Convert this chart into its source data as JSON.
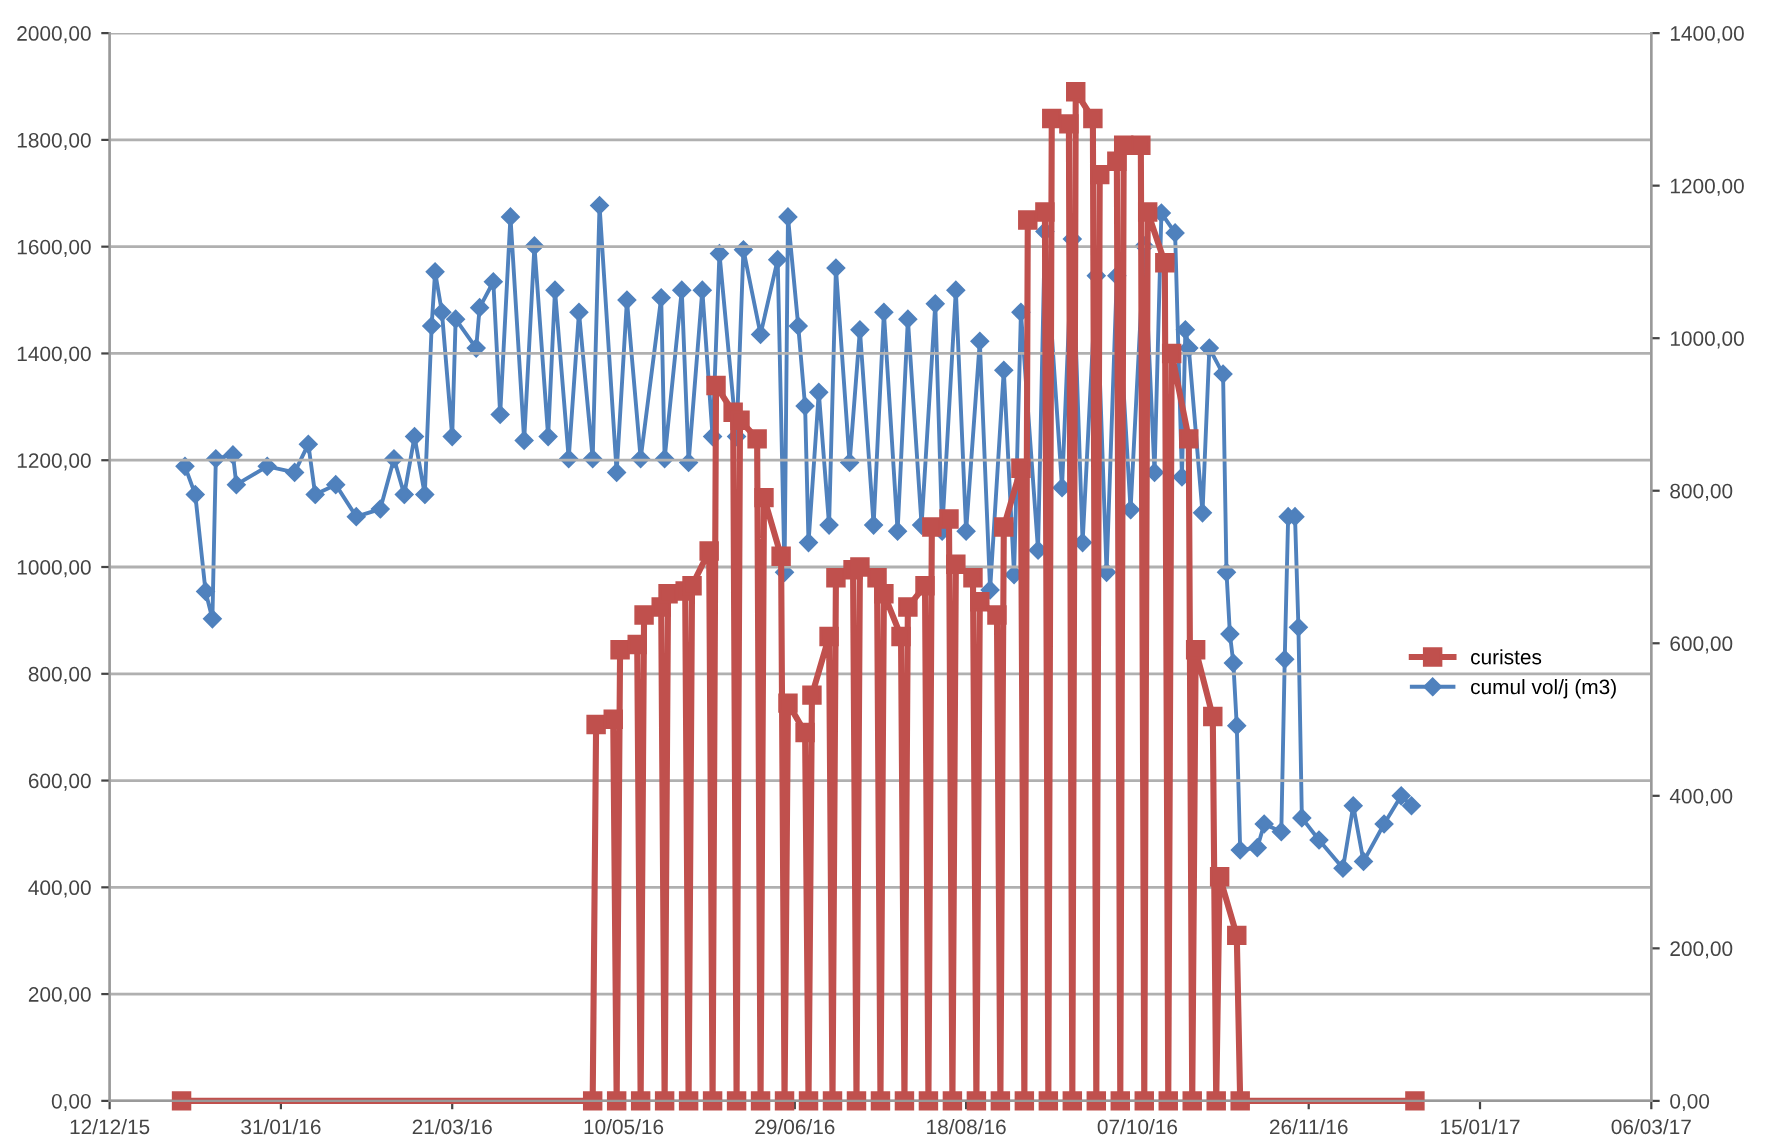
{
  "chart_data": {
    "type": "line",
    "grid": "y",
    "legend": "right",
    "xlim": [
      "2015-12-12",
      "2017-03-06"
    ],
    "xticks": [
      {
        "value": "2015-12-12",
        "label": "12/12/15"
      },
      {
        "value": "2016-01-31",
        "label": "31/01/16"
      },
      {
        "value": "2016-03-21",
        "label": "21/03/16"
      },
      {
        "value": "2016-05-10",
        "label": "10/05/16"
      },
      {
        "value": "2016-06-29",
        "label": "29/06/16"
      },
      {
        "value": "2016-08-18",
        "label": "18/08/16"
      },
      {
        "value": "2016-10-07",
        "label": "07/10/16"
      },
      {
        "value": "2016-11-26",
        "label": "26/11/16"
      },
      {
        "value": "2017-01-15",
        "label": "15/01/17"
      },
      {
        "value": "2017-03-06",
        "label": "06/03/17"
      }
    ],
    "ylim": [
      0,
      2000
    ],
    "yticks": [
      {
        "value": 0,
        "label": "0,00"
      },
      {
        "value": 200,
        "label": "200,00"
      },
      {
        "value": 400,
        "label": "400,00"
      },
      {
        "value": 600,
        "label": "600,00"
      },
      {
        "value": 800,
        "label": "800,00"
      },
      {
        "value": 1000,
        "label": "1000,00"
      },
      {
        "value": 1200,
        "label": "1200,00"
      },
      {
        "value": 1400,
        "label": "1400,00"
      },
      {
        "value": 1600,
        "label": "1600,00"
      },
      {
        "value": 1800,
        "label": "1800,00"
      },
      {
        "value": 2000,
        "label": "2000,00"
      }
    ],
    "y2lim": [
      0,
      1400
    ],
    "y2ticks": [
      {
        "value": 0,
        "label": "0,00"
      },
      {
        "value": 200,
        "label": "200,00"
      },
      {
        "value": 400,
        "label": "400,00"
      },
      {
        "value": 600,
        "label": "600,00"
      },
      {
        "value": 800,
        "label": "800,00"
      },
      {
        "value": 1000,
        "label": "1000,00"
      },
      {
        "value": 1200,
        "label": "1200,00"
      },
      {
        "value": 1400,
        "label": "1400,00"
      }
    ],
    "series": [
      {
        "name": "curistes",
        "color": "#c0504d",
        "marker": "square",
        "x": [
          "2016-01-02",
          "2016-05-01",
          "2016-05-02",
          "2016-05-07",
          "2016-05-08",
          "2016-05-09",
          "2016-05-14",
          "2016-05-15",
          "2016-05-16",
          "2016-05-21",
          "2016-05-22",
          "2016-05-23",
          "2016-05-28",
          "2016-05-29",
          "2016-05-30",
          "2016-06-04",
          "2016-06-05",
          "2016-06-06",
          "2016-06-11",
          "2016-06-12",
          "2016-06-13",
          "2016-06-18",
          "2016-06-19",
          "2016-06-20",
          "2016-06-25",
          "2016-06-26",
          "2016-06-27",
          "2016-07-02",
          "2016-07-03",
          "2016-07-04",
          "2016-07-09",
          "2016-07-10",
          "2016-07-11",
          "2016-07-16",
          "2016-07-17",
          "2016-07-18",
          "2016-07-23",
          "2016-07-24",
          "2016-07-25",
          "2016-07-30",
          "2016-07-31",
          "2016-08-01",
          "2016-08-06",
          "2016-08-07",
          "2016-08-08",
          "2016-08-13",
          "2016-08-14",
          "2016-08-15",
          "2016-08-20",
          "2016-08-21",
          "2016-08-22",
          "2016-08-27",
          "2016-08-28",
          "2016-08-29",
          "2016-09-03",
          "2016-09-04",
          "2016-09-05",
          "2016-09-10",
          "2016-09-11",
          "2016-09-12",
          "2016-09-17",
          "2016-09-18",
          "2016-09-19",
          "2016-09-24",
          "2016-09-25",
          "2016-09-26",
          "2016-10-01",
          "2016-10-02",
          "2016-10-03",
          "2016-10-08",
          "2016-10-09",
          "2016-10-10",
          "2016-10-15",
          "2016-10-16",
          "2016-10-17",
          "2016-10-22",
          "2016-10-23",
          "2016-10-24",
          "2016-10-29",
          "2016-10-30",
          "2016-10-31",
          "2016-11-05",
          "2016-11-06",
          "2016-12-27"
        ],
        "values": [
          0,
          0,
          705,
          715,
          0,
          845,
          855,
          0,
          910,
          925,
          0,
          950,
          955,
          0,
          965,
          1030,
          0,
          1340,
          1290,
          0,
          1275,
          1240,
          0,
          1130,
          1020,
          0,
          745,
          690,
          0,
          760,
          870,
          0,
          980,
          995,
          0,
          1000,
          980,
          0,
          950,
          870,
          0,
          925,
          965,
          0,
          1075,
          1090,
          0,
          1005,
          980,
          0,
          935,
          910,
          0,
          1075,
          1185,
          0,
          1650,
          1665,
          0,
          1840,
          1830,
          0,
          1890,
          1840,
          0,
          1735,
          1760,
          0,
          1790,
          1790,
          0,
          1665,
          1570,
          0,
          1400,
          1240,
          0,
          845,
          720,
          0,
          420,
          310,
          0,
          0
        ]
      },
      {
        "name": "cumul vol/j (m3)",
        "color": "#4f81bd",
        "marker": "diamond",
        "axis": "y2",
        "x": [
          "2016-01-03",
          "2016-01-06",
          "2016-01-09",
          "2016-01-11",
          "2016-01-12",
          "2016-01-17",
          "2016-01-18",
          "2016-01-27",
          "2016-02-04",
          "2016-02-08",
          "2016-02-10",
          "2016-02-16",
          "2016-02-22",
          "2016-02-29",
          "2016-03-04",
          "2016-03-07",
          "2016-03-10",
          "2016-03-13",
          "2016-03-15",
          "2016-03-16",
          "2016-03-18",
          "2016-03-21",
          "2016-03-22",
          "2016-03-28",
          "2016-03-29",
          "2016-04-02",
          "2016-04-04",
          "2016-04-07",
          "2016-04-11",
          "2016-04-14",
          "2016-04-18",
          "2016-04-20",
          "2016-04-24",
          "2016-04-27",
          "2016-05-01",
          "2016-05-03",
          "2016-05-08",
          "2016-05-11",
          "2016-05-15",
          "2016-05-21",
          "2016-05-22",
          "2016-05-27",
          "2016-05-29",
          "2016-06-02",
          "2016-06-05",
          "2016-06-07",
          "2016-06-12",
          "2016-06-14",
          "2016-06-19",
          "2016-06-24",
          "2016-06-26",
          "2016-06-27",
          "2016-06-30",
          "2016-07-02",
          "2016-07-03",
          "2016-07-06",
          "2016-07-09",
          "2016-07-11",
          "2016-07-15",
          "2016-07-18",
          "2016-07-22",
          "2016-07-25",
          "2016-07-29",
          "2016-08-01",
          "2016-08-05",
          "2016-08-09",
          "2016-08-11",
          "2016-08-15",
          "2016-08-18",
          "2016-08-22",
          "2016-08-25",
          "2016-08-29",
          "2016-09-01",
          "2016-09-03",
          "2016-09-08",
          "2016-09-10",
          "2016-09-15",
          "2016-09-18",
          "2016-09-21",
          "2016-09-25",
          "2016-09-28",
          "2016-10-01",
          "2016-10-05",
          "2016-10-09",
          "2016-10-12",
          "2016-10-14",
          "2016-10-18",
          "2016-10-20",
          "2016-10-21",
          "2016-10-22",
          "2016-10-26",
          "2016-10-28",
          "2016-11-01",
          "2016-11-02",
          "2016-11-03",
          "2016-11-04",
          "2016-11-05",
          "2016-11-06",
          "2016-11-11",
          "2016-11-13",
          "2016-11-18",
          "2016-11-19",
          "2016-11-20",
          "2016-11-22",
          "2016-11-23",
          "2016-11-24",
          "2016-11-29",
          "2016-12-06",
          "2016-12-09",
          "2016-12-12",
          "2016-12-18",
          "2016-12-23",
          "2016-12-26"
        ],
        "values": [
          832,
          795,
          668,
          632,
          842,
          847,
          808,
          832,
          824,
          861,
          795,
          808,
          766,
          776,
          842,
          795,
          871,
          795,
          1016,
          1087,
          1034,
          871,
          1025,
          987,
          1040,
          1074,
          900,
          1159,
          866,
          1121,
          871,
          1063,
          842,
          1034,
          842,
          1174,
          824,
          1050,
          842,
          1053,
          842,
          1063,
          837,
          1063,
          871,
          1111,
          871,
          1116,
          1005,
          1103,
          693,
          1159,
          1016,
          911,
          732,
          929,
          755,
          1092,
          837,
          1011,
          755,
          1034,
          747,
          1025,
          755,
          1045,
          747,
          1063,
          747,
          996,
          670,
          958,
          690,
          1034,
          722,
          1140,
          804,
          1130,
          732,
          1082,
          693,
          1082,
          775,
          1121,
          824,
          1164,
          1138,
          818,
          1011,
          987,
          771,
          987,
          953,
          693,
          612,
          574,
          492,
          329,
          332,
          363,
          353,
          579,
          766,
          766,
          621,
          371,
          342,
          305,
          387,
          314,
          363,
          400,
          387
        ]
      }
    ]
  }
}
